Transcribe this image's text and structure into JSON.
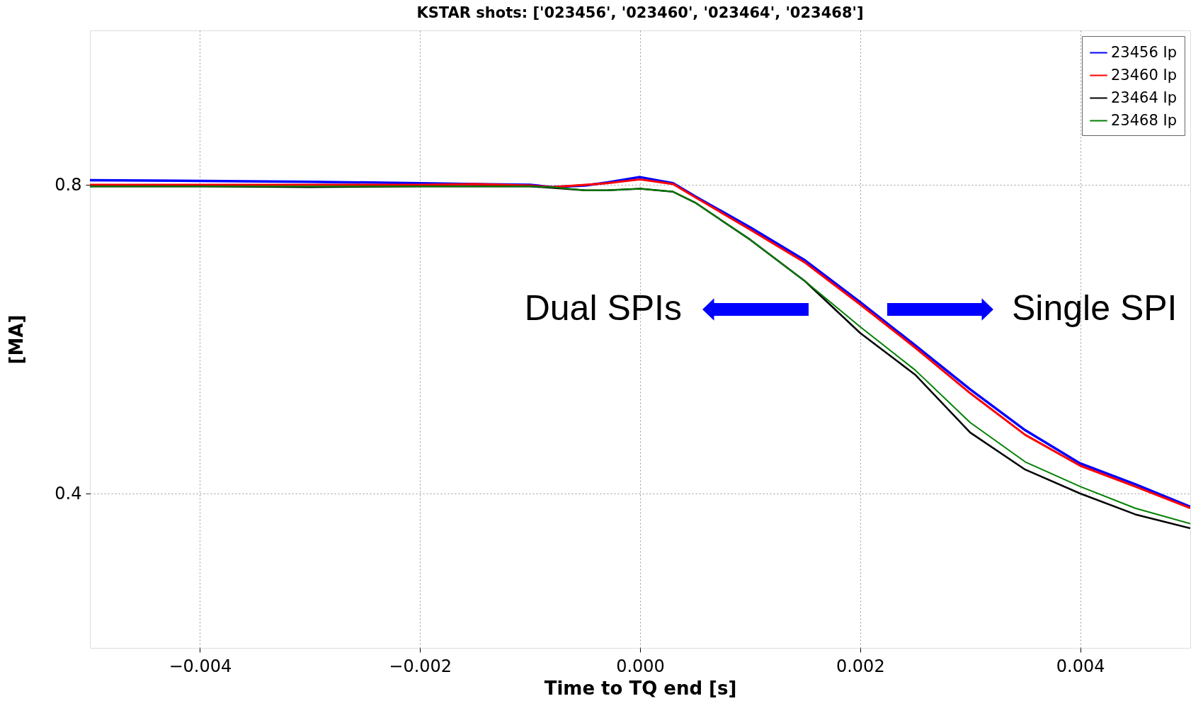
{
  "chart_data": {
    "type": "line",
    "title": "KSTAR shots: ['023456', '023460', '023464', '023468']",
    "xlabel": "Time to TQ end [s]",
    "ylabel": "[MA]",
    "x": [
      -0.005,
      -0.004,
      -0.003,
      -0.002,
      -0.0015,
      -0.001,
      -0.0008,
      -0.0005,
      -0.0003,
      0,
      0.0003,
      0.0005,
      0.001,
      0.0015,
      0.002,
      0.0025,
      0.003,
      0.0035,
      0.004,
      0.0045,
      0.005
    ],
    "series": [
      {
        "name": "23456 Ip",
        "color": "#0000ff",
        "values": [
          0.806,
          0.805,
          0.804,
          0.802,
          0.801,
          0.8,
          0.797,
          0.799,
          0.803,
          0.81,
          0.802,
          0.785,
          0.745,
          0.702,
          0.648,
          0.592,
          0.535,
          0.482,
          0.439,
          0.412,
          0.383
        ]
      },
      {
        "name": "23460 Ip",
        "color": "#ff0000",
        "values": [
          0.8,
          0.8,
          0.8,
          0.8,
          0.801,
          0.799,
          0.797,
          0.8,
          0.802,
          0.807,
          0.801,
          0.784,
          0.742,
          0.699,
          0.645,
          0.589,
          0.53,
          0.476,
          0.436,
          0.409,
          0.381
        ]
      },
      {
        "name": "23464 Ip",
        "color": "#000000",
        "values": [
          0.798,
          0.798,
          0.797,
          0.798,
          0.798,
          0.798,
          0.796,
          0.793,
          0.793,
          0.795,
          0.791,
          0.777,
          0.729,
          0.675,
          0.608,
          0.554,
          0.479,
          0.431,
          0.4,
          0.373,
          0.355
        ]
      },
      {
        "name": "23468 Ip",
        "color": "#008000",
        "values": [
          0.798,
          0.798,
          0.798,
          0.798,
          0.798,
          0.798,
          0.797,
          0.793,
          0.793,
          0.795,
          0.791,
          0.777,
          0.729,
          0.675,
          0.616,
          0.56,
          0.492,
          0.441,
          0.409,
          0.381,
          0.361
        ]
      }
    ],
    "xlim": [
      -0.005,
      0.005
    ],
    "ylim": [
      0.2,
      1.0
    ],
    "xticks": [
      {
        "value": -0.004,
        "label": "−0.004"
      },
      {
        "value": -0.002,
        "label": "−0.002"
      },
      {
        "value": 0,
        "label": "0.000"
      },
      {
        "value": 0.002,
        "label": "0.002"
      },
      {
        "value": 0.004,
        "label": "0.004"
      }
    ],
    "yticks": [
      {
        "value": 0.4,
        "label": "0.4"
      },
      {
        "value": 0.8,
        "label": "0.8"
      }
    ],
    "annotations": [
      "Dual SPIs",
      "Single SPI"
    ],
    "grid": true,
    "legend": "top right",
    "line_style": "solid",
    "marker": "none"
  }
}
